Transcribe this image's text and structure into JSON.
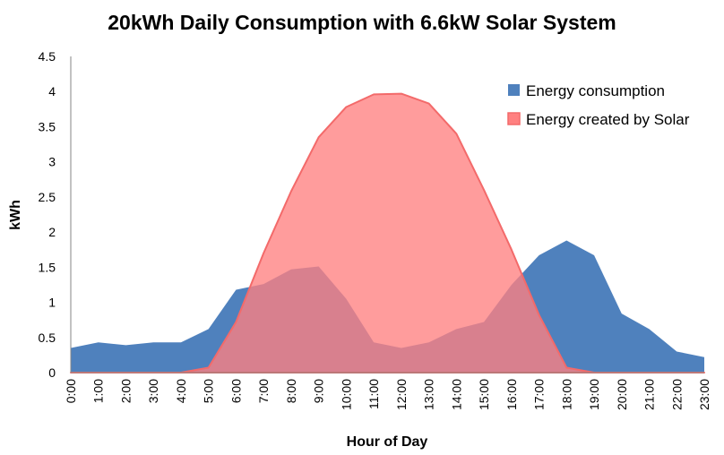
{
  "chart_data": {
    "type": "area",
    "title": "20kWh Daily Consumption with 6.6kW Solar System",
    "xlabel": "Hour of Day",
    "ylabel": "kWh",
    "ylim": [
      0,
      4.5
    ],
    "yticks": [
      "0",
      "0.5",
      "1",
      "1.5",
      "2",
      "2.5",
      "3",
      "3.5",
      "4",
      "4.5"
    ],
    "grid": false,
    "legend_position": "top-right",
    "categories": [
      "0:00",
      "1:00",
      "2:00",
      "3:00",
      "4:00",
      "5:00",
      "6:00",
      "7:00",
      "8:00",
      "9:00",
      "10:00",
      "11:00",
      "12:00",
      "13:00",
      "14:00",
      "15:00",
      "16:00",
      "17:00",
      "18:00",
      "19:00",
      "20:00",
      "21:00",
      "22:00",
      "23:00"
    ],
    "series": [
      {
        "name": "Energy consumption",
        "color": "#4F81BD",
        "values": [
          0.35,
          0.43,
          0.39,
          0.43,
          0.43,
          0.62,
          1.18,
          1.26,
          1.47,
          1.51,
          1.05,
          0.43,
          0.35,
          0.43,
          0.62,
          0.72,
          1.25,
          1.67,
          1.88,
          1.67,
          0.84,
          0.62,
          0.3,
          0.22
        ]
      },
      {
        "name": "Energy created by Solar",
        "color": "#FF8080",
        "edge_color": "#F36A6A",
        "values": [
          0,
          0,
          0,
          0,
          0,
          0.07,
          0.72,
          1.7,
          2.58,
          3.35,
          3.78,
          3.96,
          3.97,
          3.83,
          3.4,
          2.6,
          1.75,
          0.82,
          0.07,
          0,
          0,
          0,
          0,
          0
        ]
      }
    ]
  }
}
